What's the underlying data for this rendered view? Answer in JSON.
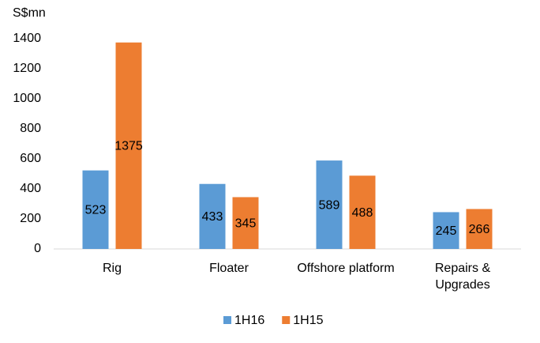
{
  "chart_data": {
    "type": "bar",
    "y_label": "S$mn",
    "categories": [
      "Rig",
      "Floater",
      "Offshore platform",
      "Repairs & Upgrades"
    ],
    "series": [
      {
        "name": "1H16",
        "color": "#5b9bd5",
        "values": [
          523,
          433,
          589,
          245
        ]
      },
      {
        "name": "1H15",
        "color": "#ed7d31",
        "values": [
          1375,
          345,
          488,
          266
        ]
      }
    ],
    "ylim": [
      0,
      1400
    ],
    "yticks": [
      0,
      200,
      400,
      600,
      800,
      1000,
      1200,
      1400
    ],
    "grid": false,
    "legend": "bottom",
    "data_labels": true
  }
}
